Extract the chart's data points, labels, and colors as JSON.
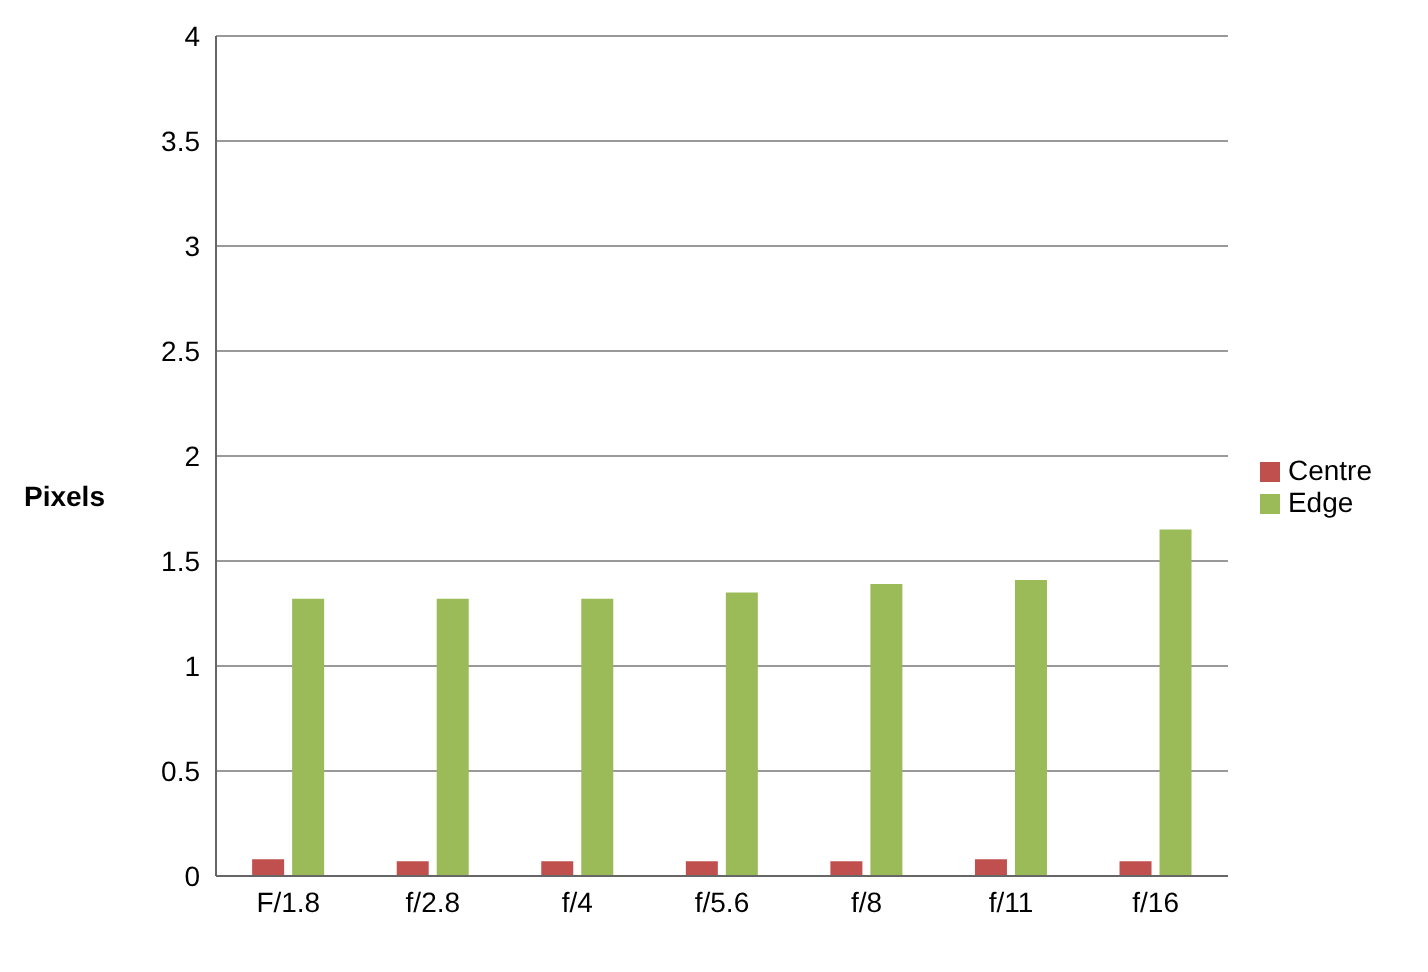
{
  "chart_data": {
    "type": "bar",
    "ylabel": "Pixels",
    "categories": [
      "F/1.8",
      "f/2.8",
      "f/4",
      "f/5.6",
      "f/8",
      "f/11",
      "f/16"
    ],
    "series": [
      {
        "name": "Centre",
        "color": "#c0504d",
        "values": [
          0.08,
          0.07,
          0.07,
          0.07,
          0.07,
          0.08,
          0.07
        ]
      },
      {
        "name": "Edge",
        "color": "#9bbb59",
        "values": [
          1.32,
          1.32,
          1.32,
          1.35,
          1.39,
          1.41,
          1.65
        ]
      }
    ],
    "ylim": [
      0,
      4
    ],
    "yticks": [
      0,
      0.5,
      1,
      1.5,
      2,
      2.5,
      3,
      3.5,
      4
    ],
    "grid": "y",
    "legend": "right"
  }
}
